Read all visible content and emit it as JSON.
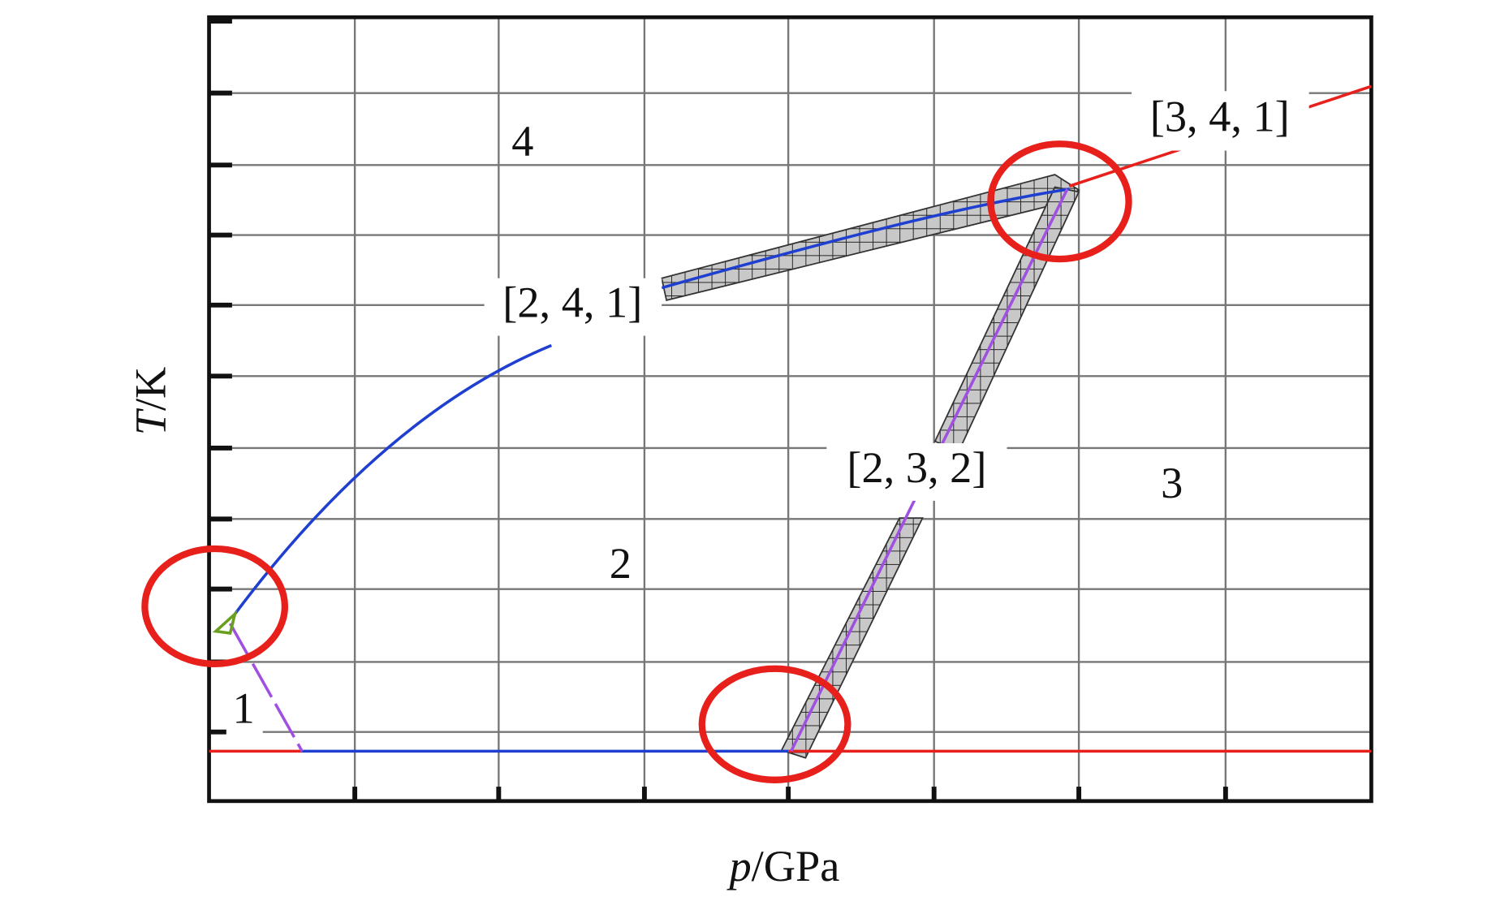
{
  "axes": {
    "x_label": {
      "variable": "p",
      "unit": "/GPa"
    },
    "y_label": {
      "variable": "T",
      "unit": "/K"
    }
  },
  "regions": [
    "1",
    "2",
    "3",
    "4"
  ],
  "triple_points": [
    "[2, 4, 1]",
    "[3, 4, 1]",
    "[2, 3, 2]"
  ]
}
